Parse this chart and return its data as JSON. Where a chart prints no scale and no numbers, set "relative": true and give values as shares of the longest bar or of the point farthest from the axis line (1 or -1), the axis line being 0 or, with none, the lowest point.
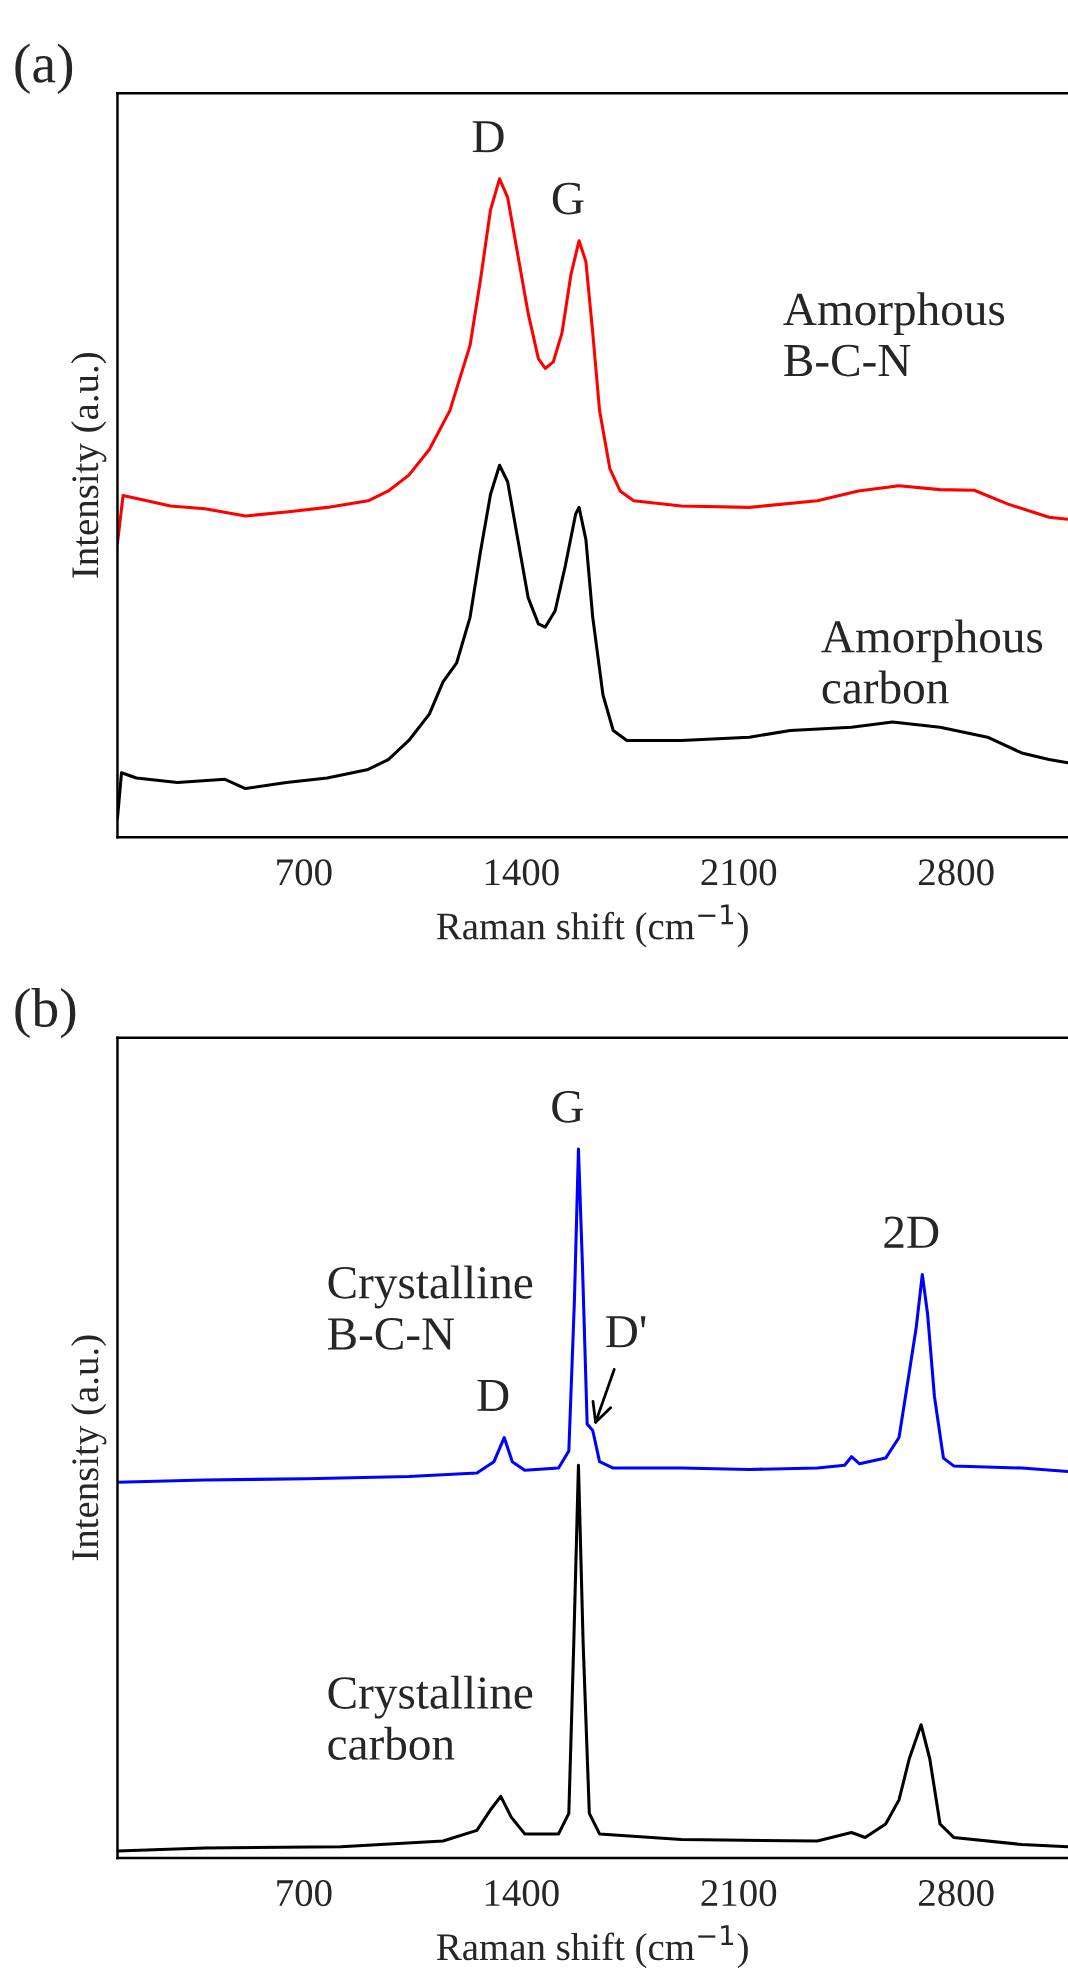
{
  "chart_data": [
    {
      "type": "line",
      "title": "(a)",
      "xlabel": "Raman shift (cm$^{−1}$)",
      "ylabel": "Intensity (a.u.)",
      "relative": true,
      "xlim": [
        100,
        3160
      ],
      "xticks": [
        700,
        1400,
        2100,
        2800
      ],
      "grid": false,
      "legend": false,
      "annotations": [
        {
          "text": "D",
          "x": 1330,
          "y": 1.0
        },
        {
          "text": "G",
          "x": 1586,
          "y": 0.906
        }
      ],
      "series": [
        {
          "name": "Amorphous\nB-C-N",
          "color": "#ff0000",
          "x": [
            100,
            118,
            271,
            381,
            512,
            644,
            775,
            907,
            972,
            1038,
            1104,
            1170,
            1235,
            1268,
            1301,
            1330,
            1356,
            1389,
            1422,
            1455,
            1477,
            1503,
            1531,
            1560,
            1586,
            1608,
            1630,
            1652,
            1685,
            1718,
            1762,
            1915,
            2134,
            2353,
            2485,
            2616,
            2748,
            2858,
            2967,
            3099,
            3160
          ],
          "values": [
            0.447,
            0.519,
            0.503,
            0.499,
            0.488,
            0.494,
            0.501,
            0.511,
            0.526,
            0.55,
            0.589,
            0.648,
            0.747,
            0.845,
            0.953,
            1.0,
            0.972,
            0.884,
            0.796,
            0.727,
            0.712,
            0.722,
            0.766,
            0.855,
            0.906,
            0.874,
            0.766,
            0.648,
            0.56,
            0.526,
            0.511,
            0.503,
            0.501,
            0.511,
            0.526,
            0.534,
            0.528,
            0.527,
            0.506,
            0.486,
            0.483
          ]
        },
        {
          "name": "Amorphous\ncarbon",
          "color": "#000000",
          "x": [
            100,
            113,
            161,
            293,
            446,
            512,
            644,
            775,
            907,
            972,
            1038,
            1104,
            1148,
            1192,
            1235,
            1268,
            1301,
            1330,
            1356,
            1389,
            1422,
            1455,
            1477,
            1509,
            1542,
            1575,
            1586,
            1608,
            1630,
            1663,
            1696,
            1740,
            1915,
            2134,
            2266,
            2463,
            2595,
            2748,
            2901,
            3011,
            3099,
            3160
          ],
          "values": [
            0.029,
            0.098,
            0.09,
            0.083,
            0.088,
            0.074,
            0.083,
            0.09,
            0.103,
            0.118,
            0.147,
            0.187,
            0.236,
            0.265,
            0.334,
            0.432,
            0.521,
            0.565,
            0.54,
            0.452,
            0.364,
            0.324,
            0.319,
            0.344,
            0.413,
            0.491,
            0.501,
            0.452,
            0.334,
            0.216,
            0.162,
            0.147,
            0.147,
            0.152,
            0.162,
            0.167,
            0.175,
            0.167,
            0.152,
            0.128,
            0.118,
            0.113
          ]
        }
      ]
    },
    {
      "type": "line",
      "title": "(b)",
      "xlabel": "Raman shift (cm$^{−1}$)",
      "ylabel": "Intensity (a.u.)",
      "relative": true,
      "xlim": [
        100,
        3160
      ],
      "xticks": [
        700,
        1400,
        2100,
        2800
      ],
      "grid": false,
      "legend": false,
      "annotations": [
        {
          "text": "D",
          "x": 1345,
          "y": 0.593
        },
        {
          "text": "G",
          "x": 1584,
          "y": 1.0
        },
        {
          "text": "D'",
          "x": 1630,
          "y": 0.603
        },
        {
          "text": "2D",
          "x": 2691,
          "y": 0.823
        }
      ],
      "series": [
        {
          "name": "Crystalline\nB-C-N",
          "color": "#0000ff",
          "x": [
            100,
            381,
            709,
            1038,
            1257,
            1312,
            1345,
            1371,
            1411,
            1520,
            1553,
            1571,
            1584,
            1597,
            1612,
            1630,
            1652,
            1696,
            1915,
            2134,
            2353,
            2441,
            2463,
            2489,
            2573,
            2616,
            2649,
            2671,
            2691,
            2708,
            2730,
            2759,
            2792,
            3011,
            3160
          ],
          "values": [
            0.53,
            0.533,
            0.535,
            0.538,
            0.543,
            0.559,
            0.593,
            0.559,
            0.547,
            0.55,
            0.574,
            0.786,
            1.0,
            0.834,
            0.612,
            0.603,
            0.559,
            0.55,
            0.55,
            0.548,
            0.55,
            0.554,
            0.566,
            0.556,
            0.564,
            0.593,
            0.685,
            0.747,
            0.823,
            0.767,
            0.651,
            0.564,
            0.553,
            0.55,
            0.545
          ]
        },
        {
          "name": "Crystalline\ncarbon",
          "color": "#000000",
          "x": [
            100,
            381,
            819,
            1148,
            1257,
            1301,
            1334,
            1367,
            1411,
            1520,
            1553,
            1569,
            1584,
            1599,
            1619,
            1652,
            1915,
            2353,
            2463,
            2507,
            2573,
            2616,
            2649,
            2687,
            2715,
            2748,
            2792,
            3011,
            3160
          ],
          "values": [
            0.01,
            0.014,
            0.016,
            0.024,
            0.039,
            0.068,
            0.087,
            0.058,
            0.034,
            0.034,
            0.063,
            0.304,
            0.554,
            0.304,
            0.063,
            0.034,
            0.026,
            0.024,
            0.036,
            0.029,
            0.048,
            0.082,
            0.14,
            0.188,
            0.14,
            0.048,
            0.029,
            0.019,
            0.016
          ]
        }
      ]
    }
  ]
}
